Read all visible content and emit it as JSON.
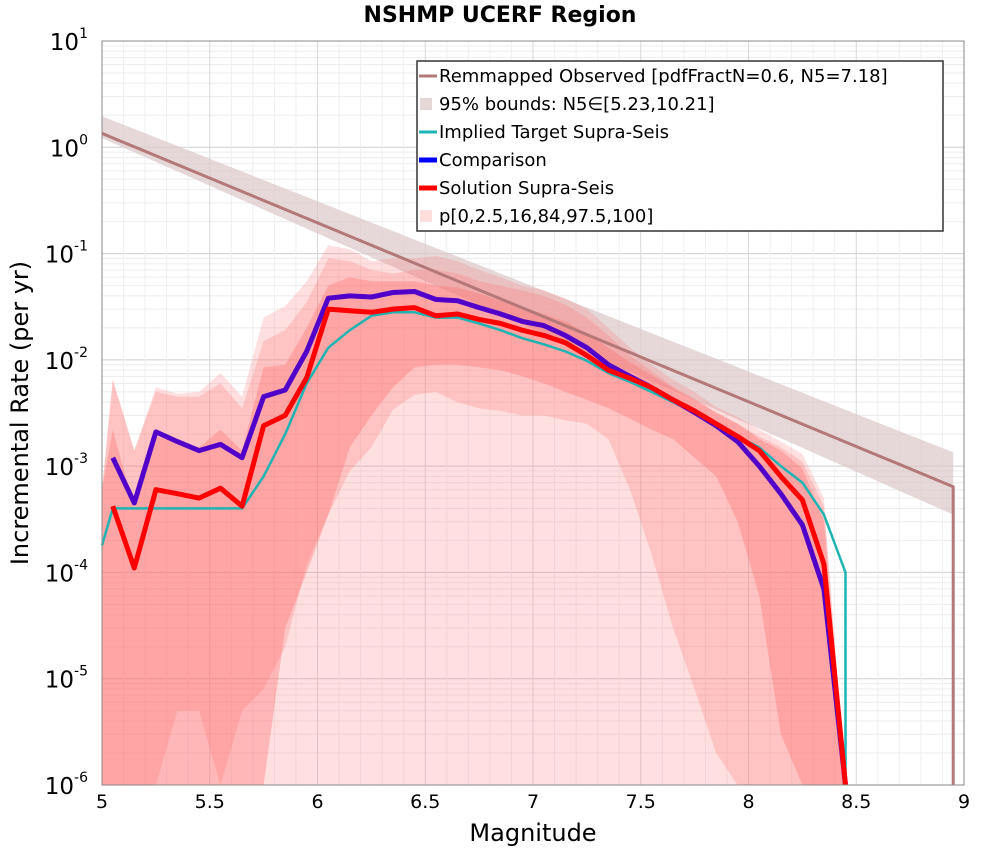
{
  "chart_data": {
    "type": "line",
    "title": "NSHMP UCERF Region",
    "xlabel": "Magnitude",
    "ylabel": "Incremental Rate (per yr)",
    "xlim": [
      5,
      9
    ],
    "ylim": [
      1e-06,
      10
    ],
    "yscale": "log",
    "grid": true,
    "legend_position": "top-right",
    "x_ticks": [
      "5",
      "5.5",
      "6",
      "6.5",
      "7",
      "7.5",
      "8",
      "8.5",
      "9"
    ],
    "y_ticks": [
      {
        "base": "10",
        "exp": "-6",
        "value": 1e-06
      },
      {
        "base": "10",
        "exp": "-5",
        "value": 1e-05
      },
      {
        "base": "10",
        "exp": "-4",
        "value": 0.0001
      },
      {
        "base": "10",
        "exp": "-3",
        "value": 0.001
      },
      {
        "base": "10",
        "exp": "-2",
        "value": 0.01
      },
      {
        "base": "10",
        "exp": "-1",
        "value": 0.1
      },
      {
        "base": "10",
        "exp": "0",
        "value": 1
      },
      {
        "base": "10",
        "exp": "1",
        "value": 10
      }
    ],
    "bands": [
      {
        "name": "95% bounds: N5∈[5.23,10.21]",
        "color": "#dcc8c8",
        "opacity": 0.7,
        "x": [
          5.0,
          8.95
        ],
        "lower": [
          1.22,
          0.00035
        ],
        "upper": [
          1.96,
          0.00135
        ]
      },
      {
        "name": "p[0,2.5,16,84,97.5,100]",
        "color": "#ff6e6e",
        "opacity": 0.22,
        "x": [
          5.0,
          5.05,
          5.15,
          5.25,
          5.35,
          5.45,
          5.55,
          5.65,
          5.75,
          5.85,
          5.95,
          6.05,
          6.15,
          6.25,
          6.35,
          6.45,
          6.55,
          6.65,
          6.75,
          6.85,
          6.95,
          7.05,
          7.15,
          7.25,
          7.35,
          7.45,
          7.55,
          7.65,
          7.75,
          7.85,
          7.95,
          8.05,
          8.15,
          8.25,
          8.35,
          8.45
        ],
        "lower": [
          1e-06,
          1e-06,
          1e-06,
          1e-06,
          1e-06,
          1e-06,
          1e-06,
          1e-06,
          1e-06,
          1e-06,
          1e-06,
          1e-06,
          1e-06,
          1e-06,
          1e-06,
          1e-06,
          1e-06,
          1e-06,
          1e-06,
          1e-06,
          1e-06,
          1e-06,
          1e-06,
          1e-06,
          1e-06,
          1e-06,
          1e-06,
          1e-06,
          1e-06,
          1e-06,
          1e-06,
          1e-06,
          1e-06,
          1e-06,
          1e-06,
          1e-06
        ],
        "upper": [
          0.0006,
          0.0065,
          0.0014,
          0.0055,
          0.0048,
          0.005,
          0.0075,
          0.0045,
          0.025,
          0.032,
          0.055,
          0.12,
          0.11,
          0.085,
          0.09,
          0.09,
          0.095,
          0.085,
          0.07,
          0.06,
          0.05,
          0.045,
          0.038,
          0.03,
          0.02,
          0.013,
          0.009,
          0.0065,
          0.005,
          0.0036,
          0.0029,
          0.0022,
          0.0017,
          0.0013,
          0.0005,
          1e-06
        ]
      },
      {
        "name": "",
        "color": "#ff6e6e",
        "opacity": 0.25,
        "x": [
          5.0,
          5.05,
          5.15,
          5.25,
          5.35,
          5.45,
          5.55,
          5.65,
          5.75,
          5.85,
          5.95,
          6.05,
          6.15,
          6.25,
          6.35,
          6.45,
          6.55,
          6.65,
          6.75,
          6.85,
          6.95,
          7.05,
          7.15,
          7.25,
          7.35,
          7.45,
          7.55,
          7.65,
          7.75,
          7.85,
          7.95,
          8.05,
          8.15,
          8.25,
          8.35,
          8.45
        ],
        "lower": [
          1e-06,
          1e-06,
          1e-06,
          1e-06,
          5e-06,
          5e-06,
          1e-06,
          5e-06,
          8e-06,
          2e-05,
          0.00012,
          0.00035,
          0.0009,
          0.0015,
          0.0034,
          0.0047,
          0.005,
          0.004,
          0.0035,
          0.0033,
          0.003,
          0.003,
          0.0027,
          0.0025,
          0.0018,
          0.0006,
          0.00015,
          3e-05,
          8e-06,
          2e-06,
          1e-06,
          1e-06,
          1e-06,
          1e-06,
          1e-06,
          1e-06
        ],
        "upper": [
          0.0006,
          0.0065,
          0.0014,
          0.005,
          0.0045,
          0.0045,
          0.006,
          0.0035,
          0.015,
          0.019,
          0.035,
          0.09,
          0.085,
          0.07,
          0.065,
          0.07,
          0.07,
          0.065,
          0.055,
          0.05,
          0.045,
          0.04,
          0.033,
          0.025,
          0.017,
          0.011,
          0.0078,
          0.0056,
          0.0043,
          0.0032,
          0.0025,
          0.0019,
          0.0015,
          0.0011,
          0.00042,
          1e-06
        ]
      },
      {
        "name": "",
        "color": "#ff6e6e",
        "opacity": 0.35,
        "x": [
          5.0,
          5.05,
          5.15,
          5.25,
          5.35,
          5.45,
          5.55,
          5.65,
          5.75,
          5.85,
          5.95,
          6.05,
          6.15,
          6.25,
          6.35,
          6.45,
          6.55,
          6.65,
          6.75,
          6.85,
          6.95,
          7.05,
          7.15,
          7.25,
          7.35,
          7.45,
          7.55,
          7.65,
          7.75,
          7.85,
          7.95,
          8.05,
          8.15,
          8.25,
          8.35,
          8.45
        ],
        "lower": [
          1e-06,
          1e-06,
          1e-06,
          1e-06,
          1e-06,
          1e-06,
          1e-06,
          1e-06,
          1e-06,
          3e-05,
          0.0001,
          0.00035,
          0.0015,
          0.003,
          0.0055,
          0.0085,
          0.009,
          0.009,
          0.0085,
          0.008,
          0.007,
          0.006,
          0.005,
          0.0042,
          0.0035,
          0.0028,
          0.0022,
          0.0018,
          0.0012,
          0.0008,
          0.0003,
          6e-05,
          3e-06,
          1e-06,
          1e-06,
          1e-06
        ],
        "upper": [
          0.0006,
          0.0022,
          0.0004,
          0.0019,
          0.0017,
          0.0015,
          0.0022,
          0.0014,
          0.0085,
          0.009,
          0.02,
          0.05,
          0.06,
          0.055,
          0.055,
          0.055,
          0.05,
          0.048,
          0.042,
          0.036,
          0.031,
          0.027,
          0.023,
          0.018,
          0.013,
          0.0095,
          0.0072,
          0.0054,
          0.0042,
          0.0032,
          0.0025,
          0.0018,
          0.0014,
          0.00095,
          0.0003,
          1e-06
        ]
      }
    ],
    "series": [
      {
        "name": "Remmapped Observed [pdfFractN=0.6, N5=7.18]",
        "color": "#b47878",
        "width": 3,
        "x": [
          5.0,
          8.95,
          8.95
        ],
        "y": [
          1.35,
          0.00064,
          1e-06
        ]
      },
      {
        "name": "Implied Target Supra-Seis",
        "color": "#1eb4b4",
        "width": 2.5,
        "x": [
          5.0,
          5.05,
          5.15,
          5.25,
          5.35,
          5.45,
          5.55,
          5.65,
          5.75,
          5.85,
          5.95,
          6.05,
          6.15,
          6.25,
          6.35,
          6.45,
          6.55,
          6.65,
          6.75,
          6.85,
          6.95,
          7.05,
          7.15,
          7.25,
          7.35,
          7.45,
          7.55,
          7.65,
          7.75,
          7.85,
          7.95,
          8.05,
          8.15,
          8.25,
          8.35,
          8.45,
          8.45
        ],
        "y": [
          0.00018,
          0.0004,
          0.0004,
          0.0004,
          0.0004,
          0.0004,
          0.0004,
          0.0004,
          0.0008,
          0.002,
          0.006,
          0.013,
          0.019,
          0.026,
          0.028,
          0.028,
          0.025,
          0.025,
          0.022,
          0.019,
          0.016,
          0.014,
          0.012,
          0.0098,
          0.0075,
          0.0062,
          0.005,
          0.004,
          0.0032,
          0.0025,
          0.0019,
          0.0015,
          0.001,
          0.0007,
          0.00035,
          0.0001,
          1e-06
        ]
      },
      {
        "name": "Comparison",
        "color": "#5000c8",
        "width": 5,
        "x": [
          5.05,
          5.15,
          5.25,
          5.35,
          5.45,
          5.55,
          5.65,
          5.75,
          5.85,
          5.95,
          6.05,
          6.15,
          6.25,
          6.35,
          6.45,
          6.55,
          6.65,
          6.75,
          6.85,
          6.95,
          7.05,
          7.15,
          7.25,
          7.35,
          7.45,
          7.55,
          7.65,
          7.75,
          7.85,
          7.95,
          8.05,
          8.15,
          8.25,
          8.35,
          8.45
        ],
        "y": [
          0.0012,
          0.00045,
          0.0021,
          0.0017,
          0.0014,
          0.0016,
          0.0012,
          0.0045,
          0.0052,
          0.012,
          0.038,
          0.04,
          0.039,
          0.043,
          0.044,
          0.037,
          0.036,
          0.031,
          0.027,
          0.023,
          0.021,
          0.017,
          0.013,
          0.009,
          0.007,
          0.0055,
          0.0042,
          0.0032,
          0.0024,
          0.0017,
          0.001,
          0.00055,
          0.00028,
          7e-05,
          1e-06
        ]
      },
      {
        "name": "Solution Supra-Seis",
        "color": "#ff0000",
        "width": 5,
        "x": [
          5.05,
          5.15,
          5.25,
          5.35,
          5.45,
          5.55,
          5.65,
          5.75,
          5.85,
          5.95,
          6.05,
          6.15,
          6.25,
          6.35,
          6.45,
          6.55,
          6.65,
          6.75,
          6.85,
          6.95,
          7.05,
          7.15,
          7.25,
          7.35,
          7.45,
          7.55,
          7.65,
          7.75,
          7.85,
          7.95,
          8.05,
          8.15,
          8.25,
          8.35,
          8.45
        ],
        "y": [
          0.00042,
          0.00011,
          0.0006,
          0.00055,
          0.0005,
          0.00062,
          0.00042,
          0.0024,
          0.003,
          0.0068,
          0.03,
          0.029,
          0.028,
          0.03,
          0.031,
          0.026,
          0.027,
          0.024,
          0.022,
          0.019,
          0.017,
          0.0145,
          0.011,
          0.008,
          0.0067,
          0.0055,
          0.0042,
          0.0033,
          0.0025,
          0.0019,
          0.0014,
          0.0008,
          0.00048,
          0.00012,
          1e-06
        ]
      }
    ],
    "legend": [
      {
        "label": "Remmapped Observed [pdfFractN=0.6, N5=7.18]",
        "color": "#b47878",
        "kind": "line"
      },
      {
        "label": "95% bounds: N5∈[5.23,10.21]",
        "color": "#e6d7d7",
        "kind": "band"
      },
      {
        "label": "Implied Target Supra-Seis",
        "color": "#1eb4b4",
        "kind": "line"
      },
      {
        "label": "Comparison",
        "color": "#0000ff",
        "kind": "thickline"
      },
      {
        "label": "Solution Supra-Seis",
        "color": "#ff0000",
        "kind": "thickline"
      },
      {
        "label": "p[0,2.5,16,84,97.5,100]",
        "color": "#ffdede",
        "kind": "band"
      }
    ]
  }
}
